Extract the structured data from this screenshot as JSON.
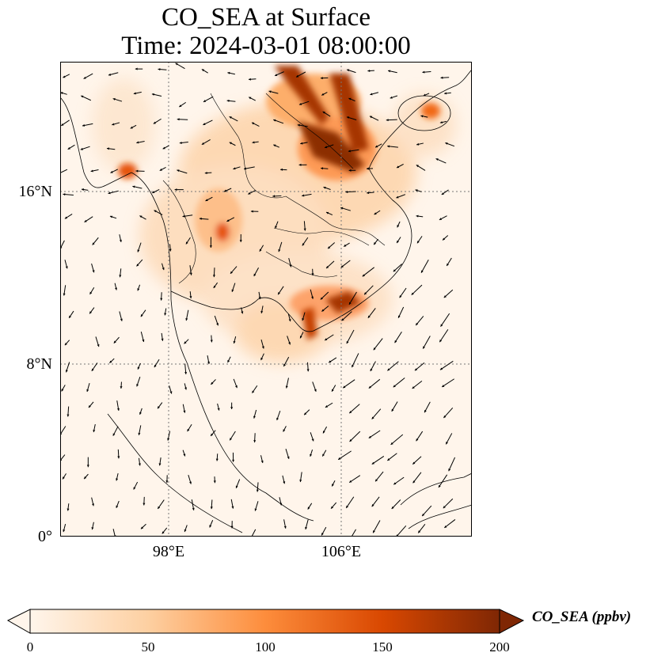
{
  "title_line1": "CO_SEA at Surface",
  "title_line2": "Time: 2024-03-01 08:00:00",
  "lat_labels": [
    "16°N",
    "8°N",
    "0°"
  ],
  "lon_labels": [
    "98°E",
    "106°E"
  ],
  "colorbar": {
    "label": "CO_SEA (ppbv)",
    "ticks": [
      "0",
      "50",
      "100",
      "150",
      "200"
    ],
    "colors": [
      "#fff5eb",
      "#fdd0a2",
      "#fd8d3c",
      "#d94801",
      "#7f2704"
    ]
  },
  "map": {
    "extent_lon": [
      93,
      112
    ],
    "extent_lat": [
      0,
      22
    ],
    "grid": "dotted",
    "wind_vectors": true
  }
}
